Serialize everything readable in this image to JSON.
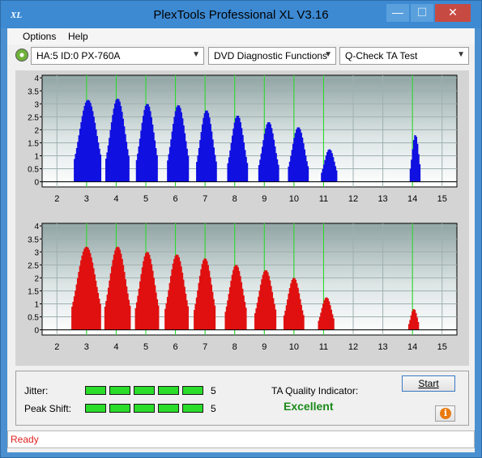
{
  "window": {
    "title": "PlexTools Professional XL V3.16",
    "icon_text": "XL",
    "minimize_glyph": "—",
    "maximize_glyph": "☐",
    "close_glyph": "✕"
  },
  "menu": {
    "options_label": "Options",
    "help_label": "Help"
  },
  "toolbar": {
    "drive_value": "HA:5 ID:0  PX-760A",
    "function_value": "DVD Diagnostic Functions",
    "test_value": "Q-Check TA Test",
    "arrow_glyph": "▼"
  },
  "chart_data": [
    {
      "type": "bar",
      "color": "#1010e0",
      "x_ticks": [
        2,
        3,
        4,
        5,
        6,
        7,
        8,
        9,
        10,
        11,
        12,
        13,
        14,
        15
      ],
      "y_ticks": [
        0,
        0.5,
        1,
        1.5,
        2,
        2.5,
        3,
        3.5,
        4
      ],
      "y_tick_labels": [
        "0",
        "0.5",
        "1",
        "1.5",
        "2",
        "2.5",
        "3",
        "3.5",
        "4"
      ],
      "xlim": [
        1.5,
        15.5
      ],
      "ylim": [
        -0.2,
        4.1
      ],
      "reference_lines": [
        3,
        4,
        5,
        6,
        7,
        8,
        9,
        10,
        11,
        14
      ],
      "peaks": [
        {
          "center": 3.05,
          "height": 3.15,
          "width": 0.28
        },
        {
          "center": 4.05,
          "height": 3.2,
          "width": 0.24
        },
        {
          "center": 5.05,
          "height": 3.0,
          "width": 0.22
        },
        {
          "center": 6.1,
          "height": 2.95,
          "width": 0.22
        },
        {
          "center": 7.05,
          "height": 2.75,
          "width": 0.2
        },
        {
          "center": 8.1,
          "height": 2.55,
          "width": 0.2
        },
        {
          "center": 9.15,
          "height": 2.3,
          "width": 0.2
        },
        {
          "center": 10.15,
          "height": 2.1,
          "width": 0.2
        },
        {
          "center": 11.2,
          "height": 1.25,
          "width": 0.16
        },
        {
          "center": 14.1,
          "height": 1.8,
          "width": 0.1
        }
      ]
    },
    {
      "type": "bar",
      "color": "#e01010",
      "x_ticks": [
        2,
        3,
        4,
        5,
        6,
        7,
        8,
        9,
        10,
        11,
        12,
        13,
        14,
        15
      ],
      "y_ticks": [
        0,
        0.5,
        1,
        1.5,
        2,
        2.5,
        3,
        3.5,
        4
      ],
      "y_tick_labels": [
        "0",
        "0.5",
        "1",
        "1.5",
        "2",
        "2.5",
        "3",
        "3.5",
        "4"
      ],
      "xlim": [
        1.5,
        15.5
      ],
      "ylim": [
        -0.2,
        4.1
      ],
      "reference_lines": [
        3,
        4,
        5,
        6,
        7,
        8,
        9,
        10,
        11,
        14
      ],
      "peaks": [
        {
          "center": 3.0,
          "height": 3.2,
          "width": 0.3
        },
        {
          "center": 4.05,
          "height": 3.2,
          "width": 0.26
        },
        {
          "center": 5.05,
          "height": 3.0,
          "width": 0.24
        },
        {
          "center": 6.05,
          "height": 2.9,
          "width": 0.24
        },
        {
          "center": 7.0,
          "height": 2.75,
          "width": 0.22
        },
        {
          "center": 8.05,
          "height": 2.5,
          "width": 0.22
        },
        {
          "center": 9.05,
          "height": 2.3,
          "width": 0.22
        },
        {
          "center": 10.0,
          "height": 2.0,
          "width": 0.2
        },
        {
          "center": 11.1,
          "height": 1.25,
          "width": 0.16
        },
        {
          "center": 14.05,
          "height": 0.8,
          "width": 0.1
        }
      ]
    }
  ],
  "results": {
    "jitter_label": "Jitter:",
    "jitter_segments": 5,
    "jitter_value": "5",
    "peak_shift_label": "Peak Shift:",
    "peak_shift_segments": 5,
    "peak_shift_value": "5",
    "ta_label": "TA Quality Indicator:",
    "ta_value": "Excellent",
    "start_label": "Start",
    "info_glyph": "i"
  },
  "status": {
    "text": "Ready"
  }
}
